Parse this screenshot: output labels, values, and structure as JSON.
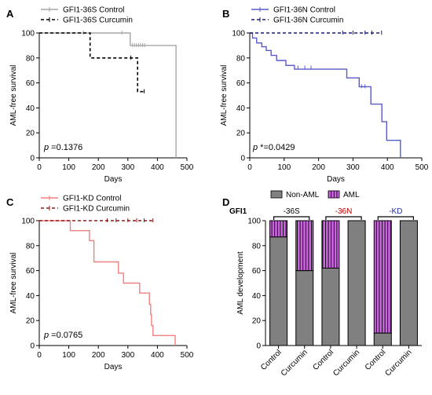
{
  "chart_data": [
    {
      "panel": "A",
      "type": "line",
      "xlabel": "Days",
      "ylabel": "AML-free survival",
      "xlim": [
        0,
        500
      ],
      "ylim": [
        0,
        100
      ],
      "xticks": [
        0,
        100,
        200,
        300,
        400,
        500
      ],
      "yticks": [
        0,
        20,
        40,
        60,
        80,
        100
      ],
      "annotation": "p =0.1376",
      "series": [
        {
          "name": "GFI1-36S Control",
          "color": "#a6a6a6",
          "dash": "",
          "steps": [
            [
              0,
              100
            ],
            [
              308,
              100
            ],
            [
              308,
              90
            ],
            [
              463,
              90
            ],
            [
              463,
              0
            ]
          ],
          "censor": [
            [
              150,
              100
            ],
            [
              280,
              100
            ],
            [
              315,
              90
            ],
            [
              322,
              90
            ],
            [
              329,
              90
            ],
            [
              336,
              90
            ],
            [
              343,
              90
            ],
            [
              350,
              90
            ],
            [
              357,
              90
            ]
          ]
        },
        {
          "name": "GFI1-36S Curcumin",
          "color": "#000000",
          "dash": "4,3",
          "steps": [
            [
              0,
              100
            ],
            [
              172,
              100
            ],
            [
              172,
              80
            ],
            [
              333,
              80
            ],
            [
              333,
              53
            ],
            [
              358,
              53
            ]
          ],
          "censor": [
            [
              310,
              80
            ],
            [
              355,
              53
            ]
          ]
        }
      ]
    },
    {
      "panel": "B",
      "type": "line",
      "xlabel": "Days",
      "ylabel": "AML-free survival",
      "xlim": [
        0,
        500
      ],
      "ylim": [
        0,
        100
      ],
      "xticks": [
        0,
        100,
        200,
        300,
        400,
        500
      ],
      "yticks": [
        0,
        20,
        40,
        60,
        80,
        100
      ],
      "annotation": "p *=0.0429",
      "series": [
        {
          "name": "GFI1-36N Control",
          "color": "#5a5acb",
          "dash": "",
          "steps": [
            [
              0,
              100
            ],
            [
              8,
              100
            ],
            [
              8,
              96
            ],
            [
              20,
              96
            ],
            [
              20,
              92
            ],
            [
              35,
              92
            ],
            [
              35,
              89
            ],
            [
              48,
              89
            ],
            [
              48,
              86
            ],
            [
              62,
              86
            ],
            [
              62,
              82
            ],
            [
              78,
              82
            ],
            [
              78,
              78
            ],
            [
              105,
              78
            ],
            [
              105,
              74
            ],
            [
              130,
              74
            ],
            [
              130,
              71
            ],
            [
              282,
              71
            ],
            [
              282,
              64
            ],
            [
              318,
              64
            ],
            [
              318,
              57
            ],
            [
              352,
              57
            ],
            [
              352,
              43
            ],
            [
              384,
              43
            ],
            [
              384,
              29
            ],
            [
              398,
              29
            ],
            [
              398,
              14
            ],
            [
              438,
              14
            ],
            [
              438,
              0
            ]
          ],
          "censor": [
            [
              140,
              72
            ],
            [
              160,
              72
            ],
            [
              178,
              72
            ],
            [
              325,
              57
            ],
            [
              335,
              57
            ]
          ]
        },
        {
          "name": "GFI1-36N Curcumin",
          "color": "#1a1a7a",
          "dash": "4,3",
          "steps": [
            [
              0,
              100
            ],
            [
              383,
              100
            ]
          ],
          "censor": [
            [
              270,
              100
            ],
            [
              300,
              100
            ],
            [
              335,
              100
            ],
            [
              355,
              100
            ],
            [
              383,
              100
            ]
          ]
        }
      ]
    },
    {
      "panel": "C",
      "type": "line",
      "xlabel": "Days",
      "ylabel": "AML-free survival",
      "xlim": [
        0,
        500
      ],
      "ylim": [
        0,
        100
      ],
      "xticks": [
        0,
        100,
        200,
        300,
        400,
        500
      ],
      "yticks": [
        0,
        20,
        40,
        60,
        80,
        100
      ],
      "annotation": "p =0.0765",
      "series": [
        {
          "name": "GFI1-KD Control",
          "color": "#f08080",
          "dash": "",
          "steps": [
            [
              0,
              100
            ],
            [
              105,
              100
            ],
            [
              105,
              92
            ],
            [
              170,
              92
            ],
            [
              170,
              84
            ],
            [
              185,
              84
            ],
            [
              185,
              67
            ],
            [
              268,
              67
            ],
            [
              268,
              58
            ],
            [
              285,
              58
            ],
            [
              285,
              50
            ],
            [
              340,
              50
            ],
            [
              340,
              42
            ],
            [
              373,
              42
            ],
            [
              373,
              33
            ],
            [
              377,
              33
            ],
            [
              377,
              25
            ],
            [
              380,
              25
            ],
            [
              380,
              16
            ],
            [
              385,
              16
            ],
            [
              385,
              8
            ],
            [
              460,
              8
            ],
            [
              460,
              0
            ]
          ],
          "censor": []
        },
        {
          "name": "GFI1-KD Curcumin",
          "color": "#8b1a1a",
          "dash": "4,3",
          "steps": [
            [
              0,
              100
            ],
            [
              385,
              100
            ]
          ],
          "censor": [
            [
              230,
              100
            ],
            [
              260,
              100
            ],
            [
              300,
              100
            ],
            [
              330,
              100
            ],
            [
              355,
              100
            ],
            [
              385,
              100
            ]
          ]
        }
      ]
    },
    {
      "panel": "D",
      "type": "bar",
      "ylabel": "AML development",
      "ylim": [
        0,
        100
      ],
      "yticks": [
        0,
        20,
        40,
        60,
        80,
        100
      ],
      "row_label": "GFI1",
      "groups": [
        {
          "label": "-36S",
          "color": "#000000"
        },
        {
          "label": "-36N",
          "color": "#c00000"
        },
        {
          "label": "-KD",
          "color": "#1f2fa0"
        }
      ],
      "categories": [
        "Control",
        "Curcumin",
        "Control",
        "Curcumin",
        "Control",
        "Curcumin"
      ],
      "series": [
        {
          "name": "Non-AML",
          "color": "#808080",
          "values": [
            87,
            60,
            62,
            100,
            10,
            100
          ]
        },
        {
          "name": "AML",
          "color": "#cc66e0",
          "values": [
            13,
            40,
            38,
            0,
            90,
            0
          ]
        }
      ]
    }
  ]
}
